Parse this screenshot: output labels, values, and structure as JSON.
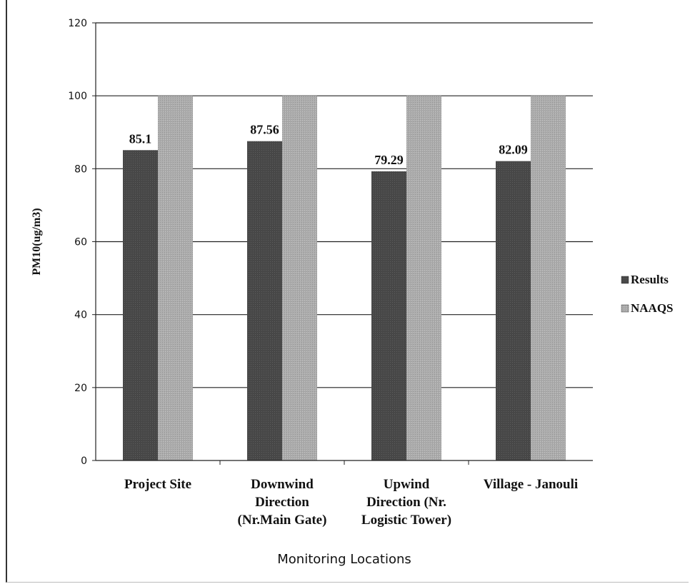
{
  "chart_data": {
    "type": "bar",
    "title": "",
    "xlabel": "Monitoring Locations",
    "ylabel": "PM10(ug/m3)",
    "ylim": [
      0,
      120
    ],
    "yticks": [
      0,
      20,
      40,
      60,
      80,
      100,
      120
    ],
    "categories": [
      [
        "Project Site"
      ],
      [
        "Downwind",
        "Direction",
        "(Nr.Main Gate)"
      ],
      [
        "Upwind",
        "Direction (Nr.",
        "Logistic Tower)"
      ],
      [
        "Village - Janouli"
      ]
    ],
    "series": [
      {
        "name": "Results",
        "values": [
          85.1,
          87.56,
          79.29,
          82.09
        ],
        "labels": [
          "85.1",
          "87.56",
          "79.29",
          "82.09"
        ],
        "color": "#4a4a4a"
      },
      {
        "name": "NAAQS",
        "values": [
          100,
          100,
          100,
          100
        ],
        "color": "#a8a8a8"
      }
    ],
    "grid": true,
    "legend_position": "right"
  }
}
